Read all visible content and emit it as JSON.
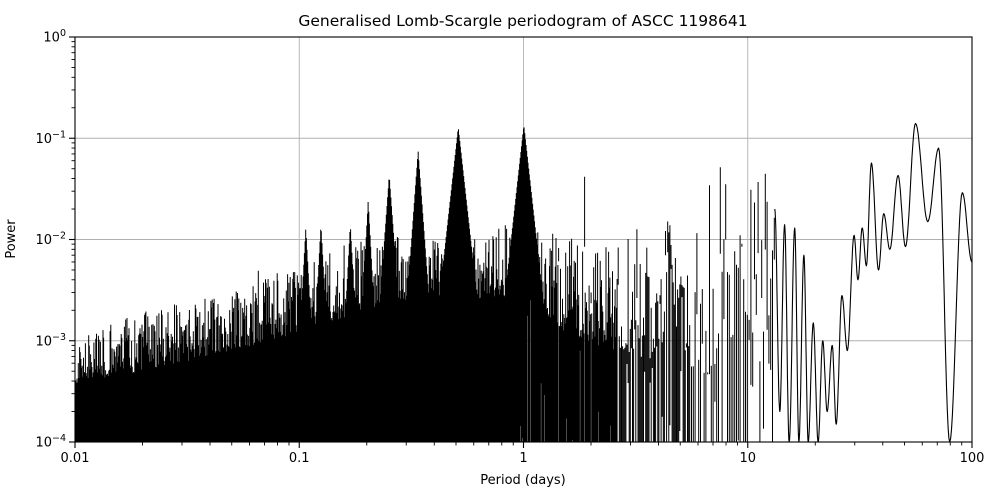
{
  "figure": {
    "background": "#ffffff",
    "line_color": "#000000",
    "grid_color": "#b0b0b0",
    "spine_color": "#000000"
  },
  "chart_data": {
    "type": "line",
    "title": "Generalised Lomb-Scargle periodogram of ASCC 1198641",
    "xlabel": "Period (days)",
    "ylabel": "Power",
    "xscale": "log",
    "yscale": "log",
    "xlim": [
      0.01,
      100
    ],
    "ylim": [
      0.0001,
      1
    ],
    "grid": "major-only",
    "legend": "none",
    "x_ticks": [
      {
        "value": 0.01,
        "label": "0.01"
      },
      {
        "value": 0.1,
        "label": "0.1"
      },
      {
        "value": 1,
        "label": "1"
      },
      {
        "value": 10,
        "label": "10"
      },
      {
        "value": 100,
        "label": "100"
      }
    ],
    "y_tick_exponents": [
      0,
      -1,
      -2,
      -3,
      -4
    ],
    "major_peaks": [
      {
        "period": 0.0205,
        "power": 0.0022
      },
      {
        "period": 0.107,
        "power": 0.013
      },
      {
        "period": 0.125,
        "power": 0.014
      },
      {
        "period": 0.169,
        "power": 0.014
      },
      {
        "period": 0.203,
        "power": 0.024
      },
      {
        "period": 0.252,
        "power": 0.043
      },
      {
        "period": 0.339,
        "power": 0.075
      },
      {
        "period": 0.512,
        "power": 0.128
      },
      {
        "period": 1.004,
        "power": 0.135
      },
      {
        "period": 4.48,
        "power": 0.016
      },
      {
        "period": 7.9,
        "power": 0.0145
      },
      {
        "period": 9.3,
        "power": 0.014
      },
      {
        "period": 13.2,
        "power": 0.02
      }
    ],
    "noise_envelope_log10_top": [
      {
        "period": 0.01,
        "min": -3.42,
        "max": -2.95
      },
      {
        "period": 0.02,
        "min": -3.3,
        "max": -2.72
      },
      {
        "period": 0.05,
        "min": -3.1,
        "max": -2.5
      },
      {
        "period": 0.1,
        "min": -2.92,
        "max": -2.25
      },
      {
        "period": 0.15,
        "min": -2.8,
        "max": -2.05
      },
      {
        "period": 0.25,
        "min": -2.62,
        "max": -1.95
      },
      {
        "period": 0.4,
        "min": -2.55,
        "max": -1.92
      },
      {
        "period": 0.6,
        "min": -2.6,
        "max": -2.0
      },
      {
        "period": 0.9,
        "min": -2.55,
        "max": -1.82
      },
      {
        "period": 1.1,
        "min": -2.6,
        "max": -1.85
      },
      {
        "period": 1.5,
        "min": -2.9,
        "max": -1.98
      },
      {
        "period": 2.5,
        "min": -3.1,
        "max": -1.95
      },
      {
        "period": 4.0,
        "min": -3.2,
        "max": -2.0
      },
      {
        "period": 6.0,
        "min": -3.3,
        "max": -2.02
      },
      {
        "period": 9.0,
        "min": -3.4,
        "max": -1.95
      },
      {
        "period": 13.0,
        "min": -3.5,
        "max": -1.82
      }
    ],
    "noise_period_range": [
      0.01,
      13.2
    ],
    "smooth_segment": [
      [
        13.2,
        0.02
      ],
      [
        13.9,
        0.0002
      ],
      [
        14.6,
        0.014
      ],
      [
        15.3,
        0.0001
      ],
      [
        16.2,
        0.013
      ],
      [
        16.9,
        0.0001
      ],
      [
        17.8,
        0.007
      ],
      [
        18.6,
        0.0001
      ],
      [
        19.6,
        0.0015
      ],
      [
        20.6,
        0.0001
      ],
      [
        21.6,
        0.001
      ],
      [
        22.6,
        0.0002
      ],
      [
        23.8,
        0.0009
      ],
      [
        24.8,
        0.00015
      ],
      [
        26.3,
        0.0028
      ],
      [
        27.8,
        0.0008
      ],
      [
        29.8,
        0.011
      ],
      [
        31.0,
        0.004
      ],
      [
        32.4,
        0.013
      ],
      [
        33.8,
        0.0055
      ],
      [
        35.6,
        0.057
      ],
      [
        38.3,
        0.005
      ],
      [
        40.4,
        0.018
      ],
      [
        43.0,
        0.008
      ],
      [
        46.8,
        0.043
      ],
      [
        50.5,
        0.0085
      ],
      [
        56.0,
        0.14
      ],
      [
        63.5,
        0.015
      ],
      [
        71.0,
        0.08
      ],
      [
        79.5,
        0.0001
      ],
      [
        90.5,
        0.029
      ],
      [
        100.0,
        0.006
      ]
    ],
    "seed": 7
  }
}
